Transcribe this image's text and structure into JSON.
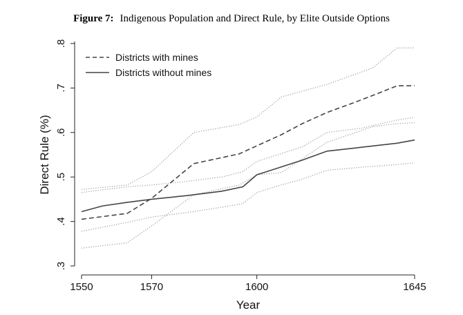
{
  "figure": {
    "title_prefix": "Figure 7:",
    "title_text": "Indigenous Population and Direct Rule, by Elite Outside Options"
  },
  "chart_data": {
    "type": "line",
    "xlabel": "Year",
    "ylabel": "Direct Rule (%)",
    "xlim": [
      1550,
      1645
    ],
    "ylim": [
      0.3,
      0.8
    ],
    "x_ticks": [
      1550,
      1570,
      1600,
      1645
    ],
    "x_tick_labels": [
      "1550",
      "1570",
      "1600",
      "1645"
    ],
    "y_ticks": [
      0.3,
      0.4,
      0.5,
      0.6,
      0.7,
      0.8
    ],
    "y_tick_labels": [
      ".3",
      ".4",
      ".5",
      ".6",
      ".7",
      ".8"
    ],
    "grid": false,
    "legend_position": "top-left",
    "series": [
      {
        "name": "Districts with mines",
        "style": "dashed",
        "color": "#444444",
        "x": [
          1550,
          1563,
          1570,
          1582,
          1595,
          1600,
          1607,
          1613,
          1620,
          1627,
          1633,
          1640,
          1645
        ],
        "y": [
          0.405,
          0.418,
          0.452,
          0.53,
          0.552,
          0.57,
          0.595,
          0.62,
          0.645,
          0.665,
          0.683,
          0.705,
          0.705
        ]
      },
      {
        "name": "Districts without mines",
        "style": "solid",
        "color": "#444444",
        "x": [
          1550,
          1556,
          1563,
          1570,
          1580,
          1590,
          1596,
          1600,
          1606,
          1613,
          1620,
          1630,
          1640,
          1645
        ],
        "y": [
          0.422,
          0.435,
          0.443,
          0.45,
          0.458,
          0.468,
          0.478,
          0.505,
          0.52,
          0.538,
          0.558,
          0.567,
          0.576,
          0.583
        ]
      }
    ],
    "confidence_bands": [
      {
        "series": "Districts with mines",
        "style": "dotted",
        "color": "#999999",
        "x": [
          1550,
          1563,
          1570,
          1582,
          1595,
          1600,
          1607,
          1620,
          1633,
          1640,
          1645
        ],
        "upper": [
          0.472,
          0.482,
          0.512,
          0.6,
          0.618,
          0.635,
          0.68,
          0.708,
          0.745,
          0.79,
          0.79
        ],
        "lower": [
          0.34,
          0.352,
          0.39,
          0.46,
          0.482,
          0.505,
          0.51,
          0.578,
          0.613,
          0.62,
          0.622
        ]
      },
      {
        "series": "Districts without mines",
        "style": "dotted",
        "color": "#999999",
        "x": [
          1550,
          1563,
          1570,
          1580,
          1590,
          1596,
          1600,
          1606,
          1613,
          1620,
          1630,
          1640,
          1645
        ],
        "upper": [
          0.465,
          0.478,
          0.482,
          0.49,
          0.5,
          0.512,
          0.535,
          0.55,
          0.568,
          0.6,
          0.61,
          0.628,
          0.634
        ],
        "lower": [
          0.378,
          0.398,
          0.41,
          0.42,
          0.432,
          0.44,
          0.465,
          0.48,
          0.495,
          0.515,
          0.522,
          0.528,
          0.532
        ]
      }
    ]
  }
}
